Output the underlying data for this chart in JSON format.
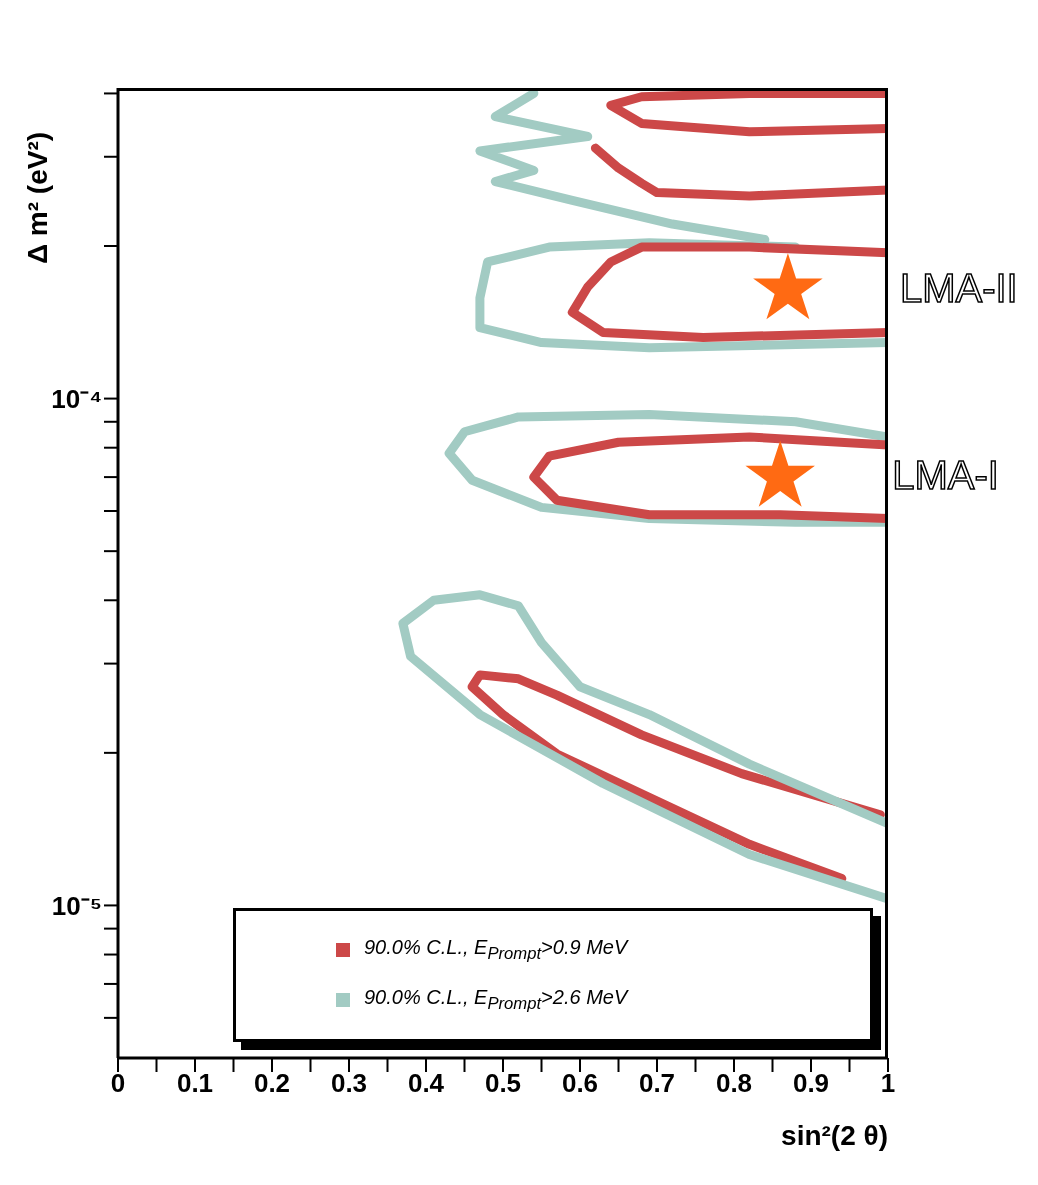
{
  "chart_data": {
    "type": "line",
    "xlabel": "sin²(2 θ)",
    "ylabel": "Δ m² (eV²)",
    "xlim": [
      0,
      1
    ],
    "xticks": [
      0,
      {
        "value": 0.05,
        "label": null
      },
      0.1,
      {
        "value": 0.15,
        "label": null
      },
      0.2,
      {
        "value": 0.25,
        "label": null
      },
      0.3,
      {
        "value": 0.35,
        "label": null
      },
      0.4,
      {
        "value": 0.45,
        "label": null
      },
      0.5,
      {
        "value": 0.55,
        "label": null
      },
      0.6,
      {
        "value": 0.65,
        "label": null
      },
      0.7,
      {
        "value": 0.75,
        "label": null
      },
      0.8,
      {
        "value": 0.85,
        "label": null
      },
      0.9,
      {
        "value": 0.95,
        "label": null
      },
      1
    ],
    "ylim": [
      5e-06,
      0.00041
    ],
    "yticks": [
      {
        "value": 6e-06,
        "label": null
      },
      {
        "value": 7e-06,
        "label": null
      },
      {
        "value": 8e-06,
        "label": null
      },
      {
        "value": 9e-06,
        "label": null
      },
      {
        "value": 1e-05,
        "label": "10⁻⁵"
      },
      {
        "value": 2e-05,
        "label": null
      },
      {
        "value": 3e-05,
        "label": null
      },
      {
        "value": 4e-05,
        "label": null
      },
      {
        "value": 5e-05,
        "label": null
      },
      {
        "value": 6e-05,
        "label": null
      },
      {
        "value": 7e-05,
        "label": null
      },
      {
        "value": 8e-05,
        "label": null
      },
      {
        "value": 9e-05,
        "label": null
      },
      {
        "value": 0.0001,
        "label": "10⁻⁴"
      },
      {
        "value": 0.0002,
        "label": null
      },
      {
        "value": 0.0003,
        "label": null
      },
      {
        "value": 0.0004,
        "label": null
      }
    ],
    "log": "y",
    "marker": "none",
    "line_style": "solid",
    "legend": "bottom",
    "annotations": [
      {
        "text": "LMA-II",
        "x": 0.87,
        "y": 0.000164
      },
      {
        "text": "LMA-I",
        "x": 0.86,
        "y": 7e-05
      }
    ],
    "series": [
      {
        "name": "90.0% C.L., E$_{Prompt}$>0.9 MeV",
        "color": "#cc4848",
        "x": [
          0.94,
          0.82,
          0.68,
          0.57,
          0.5,
          0.46,
          0.47,
          0.52,
          0.57,
          0.68,
          0.81,
          0.99
        ],
        "values": [
          1.13e-05,
          1.32e-05,
          1.66e-05,
          1.99e-05,
          2.38e-05,
          2.7e-05,
          2.85e-05,
          2.8e-05,
          2.6e-05,
          2.17e-05,
          1.82e-05,
          1.51e-05
        ]
      },
      {
        "name": "90.0% C.L., E$_{Prompt}$>2.6 MeV",
        "color": "#a2cbc3",
        "x": [
          1,
          0.82,
          0.63,
          0.47,
          0.38,
          0.37,
          0.41,
          0.47,
          0.52,
          0.55,
          0.6,
          0.69,
          0.82,
          1
        ],
        "values": [
          1.03e-05,
          1.26e-05,
          1.74e-05,
          2.38e-05,
          3.1e-05,
          3.6e-05,
          4e-05,
          4.1e-05,
          3.9e-05,
          3.3e-05,
          2.7e-05,
          2.38e-05,
          1.9e-05,
          1.45e-05
        ]
      },
      {
        "color": "#a2cbc3",
        "x": [
          1,
          0.88,
          0.69,
          0.52,
          0.45,
          0.43,
          0.46,
          0.55,
          0.69,
          0.88,
          1
        ],
        "values": [
          8.4e-05,
          9e-05,
          9.3e-05,
          9.2e-05,
          8.6e-05,
          7.8e-05,
          6.9e-05,
          6.1e-05,
          5.8e-05,
          5.7e-05,
          5.7e-05
        ]
      },
      {
        "color": "#cc4848",
        "x": [
          1,
          0.82,
          0.65,
          0.56,
          0.54,
          0.57,
          0.69,
          0.86,
          1
        ],
        "values": [
          8.1e-05,
          8.4e-05,
          8.2e-05,
          7.7e-05,
          7e-05,
          6.3e-05,
          5.9e-05,
          5.9e-05,
          5.8e-05
        ]
      },
      {
        "color": "#a2cbc3",
        "x": [
          0.88,
          0.69,
          0.56,
          0.48,
          0.47,
          0.47,
          0.55,
          0.69,
          1
        ],
        "values": [
          0.000199,
          0.000203,
          0.000199,
          0.000186,
          0.000158,
          0.000138,
          0.000129,
          0.000126,
          0.000129
        ]
      },
      {
        "color": "#a2cbc3",
        "x": [
          0.54,
          0.49,
          0.61,
          0.47,
          0.54,
          0.49,
          0.59,
          0.72,
          0.84
        ],
        "values": [
          0.0004,
          0.00036,
          0.000329,
          0.000308,
          0.000282,
          0.000268,
          0.000246,
          0.000221,
          0.000206
        ]
      },
      {
        "color": "#cc4848",
        "x": [
          1,
          0.82,
          0.68,
          0.64,
          0.61,
          0.59,
          0.63,
          0.76,
          1
        ],
        "values": [
          0.000194,
          0.000199,
          0.000199,
          0.000186,
          0.000166,
          0.000148,
          0.000135,
          0.000132,
          0.000135
        ]
      },
      {
        "color": "#cc4848",
        "x": [
          1,
          0.82,
          0.68,
          0.64,
          0.68,
          0.82,
          1
        ],
        "values": [
          0.0004,
          0.0004,
          0.000394,
          0.000379,
          0.000349,
          0.000336,
          0.000341
        ]
      },
      {
        "color": "#cc4848",
        "x": [
          0.62,
          0.65,
          0.68,
          0.7,
          0.82,
          1
        ],
        "values": [
          0.000312,
          0.000285,
          0.000266,
          0.000255,
          0.000251,
          0.000258
        ]
      },
      {
        "type": "scatter",
        "marker": "star",
        "color": "#ff6a13",
        "x": [
          0.87,
          0.86
        ],
        "values": [
          0.000164,
          7e-05
        ]
      }
    ]
  }
}
